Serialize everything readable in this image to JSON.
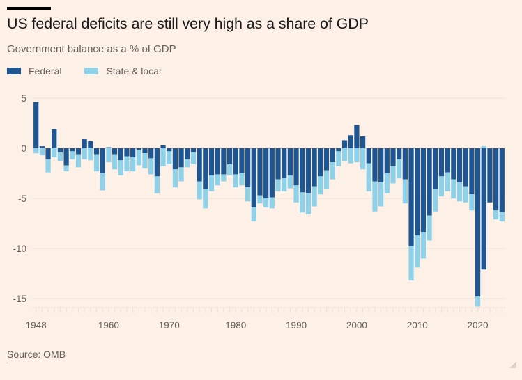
{
  "header": {
    "title": "US federal deficits are still very high as a share of GDP",
    "subtitle": "Government balance as a % of GDP"
  },
  "legend": {
    "items": [
      {
        "label": "Federal",
        "color": "#1f5692"
      },
      {
        "label": "State & local",
        "color": "#8fd1e9"
      }
    ]
  },
  "footer": {
    "source": "Source: OMB"
  },
  "chart_data": {
    "type": "bar",
    "stacked": true,
    "title": "US federal deficits are still very high as a share of GDP",
    "subtitle": "Government balance as a % of GDP",
    "xlabel": "",
    "ylabel": "",
    "ylim": [
      -16,
      5.5
    ],
    "yticks": [
      5,
      0,
      -5,
      -10,
      -15
    ],
    "xtick_labels": [
      "1948",
      "1960",
      "1970",
      "1980",
      "1990",
      "2000",
      "2010",
      "2020"
    ],
    "grid": true,
    "legend_position": "top-left",
    "categories": [
      "1948",
      "1949",
      "1950",
      "1951",
      "1952",
      "1953",
      "1954",
      "1955",
      "1956",
      "1957",
      "1958",
      "1959",
      "1960",
      "1961",
      "1962",
      "1963",
      "1964",
      "1965",
      "1966",
      "1967",
      "1968",
      "1969",
      "1970",
      "1971",
      "1972",
      "1973",
      "1974",
      "1975",
      "1976",
      "TQ",
      "1977",
      "1978",
      "1979",
      "1980",
      "1981",
      "1982",
      "1983",
      "1984",
      "1985",
      "1986",
      "1987",
      "1988",
      "1989",
      "1990",
      "1991",
      "1992",
      "1993",
      "1994",
      "1995",
      "1996",
      "1997",
      "1998",
      "1999",
      "2000",
      "2001",
      "2002",
      "2003",
      "2004",
      "2005",
      "2006",
      "2007",
      "2008",
      "2009",
      "2010",
      "2011",
      "2012",
      "2013",
      "2014",
      "2015",
      "2016",
      "2017",
      "2018",
      "2019",
      "2020",
      "2021",
      "2022",
      "2023",
      "2024"
    ],
    "series": [
      {
        "name": "Federal",
        "color": "#1f5692",
        "values": [
          4.6,
          0.2,
          -1.1,
          1.9,
          -0.4,
          -1.7,
          -0.3,
          -0.6,
          0.9,
          0.7,
          -0.6,
          -2.5,
          0.1,
          -0.6,
          -1.2,
          -0.8,
          -0.9,
          -0.2,
          -0.5,
          -1.0,
          -2.8,
          0.3,
          -0.3,
          -2.1,
          -1.9,
          -1.1,
          -0.4,
          -3.3,
          -4.1,
          -2.7,
          -2.6,
          -2.6,
          -1.6,
          -2.6,
          -2.5,
          -3.9,
          -5.9,
          -4.7,
          -5.0,
          -4.9,
          -3.1,
          -3.0,
          -2.7,
          -3.7,
          -4.4,
          -4.5,
          -3.8,
          -2.8,
          -2.2,
          -1.4,
          -0.3,
          0.8,
          1.3,
          2.3,
          1.2,
          -1.5,
          -3.3,
          -3.4,
          -2.5,
          -1.8,
          -1.1,
          -3.1,
          -9.8,
          -8.7,
          -8.4,
          -6.7,
          -4.1,
          -2.8,
          -2.4,
          -3.1,
          -3.4,
          -3.8,
          -4.6,
          -14.8,
          -12.1,
          -5.4,
          -6.2,
          -6.4
        ]
      },
      {
        "name": "State & local",
        "color": "#8fd1e9",
        "values": [
          -0.5,
          -0.7,
          -1.3,
          -0.9,
          -0.9,
          -0.6,
          -0.8,
          -1.3,
          -1.1,
          -1.2,
          -1.7,
          -1.7,
          -1.4,
          -1.5,
          -1.5,
          -1.5,
          -1.4,
          -1.5,
          -1.5,
          -1.6,
          -1.7,
          -1.8,
          -1.3,
          -1.8,
          -1.4,
          -0.8,
          -1.2,
          -1.8,
          -1.9,
          -1.6,
          -1.1,
          -0.7,
          -1.1,
          -1.3,
          -1.2,
          -1.4,
          -1.4,
          -0.8,
          -0.9,
          -1.1,
          -1.2,
          -1.3,
          -1.3,
          -1.7,
          -2.0,
          -2.1,
          -2.0,
          -1.8,
          -1.9,
          -1.7,
          -1.5,
          -1.3,
          -1.5,
          -1.4,
          -2.1,
          -2.8,
          -3.0,
          -2.4,
          -2.0,
          -1.7,
          -1.9,
          -2.4,
          -3.4,
          -3.2,
          -2.6,
          -2.5,
          -2.2,
          -2.0,
          -1.9,
          -1.9,
          -1.9,
          -1.6,
          -1.6,
          -1.0,
          0.2,
          0.0,
          -0.9,
          -0.9
        ]
      }
    ]
  }
}
